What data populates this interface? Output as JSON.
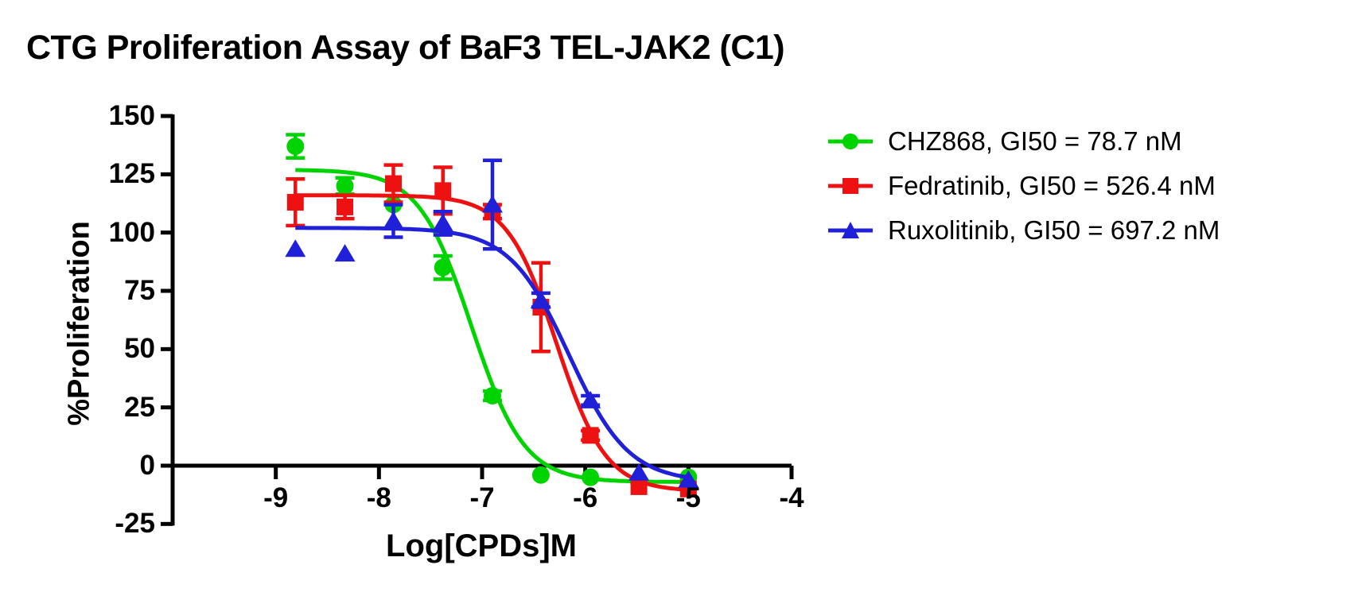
{
  "title": "CTG Proliferation Assay of BaF3 TEL-JAK2 (C1)",
  "chart_data": {
    "type": "scatter",
    "title": "CTG Proliferation Assay of BaF3 TEL-JAK2 (C1)",
    "xlabel": "Log[CPDs]M",
    "ylabel": "%Proliferation",
    "xlim": [
      -10,
      -4
    ],
    "ylim": [
      -25,
      150
    ],
    "x_ticks": [
      -9,
      -8,
      -7,
      -6,
      -5,
      -4
    ],
    "y_ticks": [
      150,
      125,
      100,
      75,
      50,
      25,
      0,
      -25
    ],
    "grid": false,
    "legend_position": "right",
    "x": [
      -8.81,
      -8.33,
      -7.86,
      -7.38,
      -6.9,
      -6.43,
      -5.95,
      -5.48,
      -5.0
    ],
    "series": [
      {
        "name": "CHZ868",
        "gi50_nM": 78.7,
        "legend_label": "CHZ868, GI50 = 78.7 nM",
        "color": "#00D400",
        "marker": "circle",
        "values": [
          137,
          120,
          112,
          85,
          30,
          -4,
          -5,
          -7,
          -5
        ],
        "errors": [
          5,
          3.5,
          0,
          5,
          2,
          0,
          0,
          0,
          0
        ],
        "fit": {
          "top": 127,
          "bottom": -7,
          "logIC50": -7.104,
          "hill": 1.7
        }
      },
      {
        "name": "Fedratinib",
        "gi50_nM": 526.4,
        "legend_label": "Fedratinib, GI50 = 526.4 nM",
        "color": "#EE1111",
        "marker": "square",
        "values": [
          113,
          111,
          121,
          118,
          109,
          68,
          13,
          -9,
          -10
        ],
        "errors": [
          10,
          5,
          8,
          10,
          3,
          19,
          2,
          0,
          0
        ],
        "fit": {
          "top": 116,
          "bottom": -11,
          "logIC50": -6.279,
          "hill": 1.8
        }
      },
      {
        "name": "Ruxolitinib",
        "gi50_nM": 697.2,
        "legend_label": "Ruxolitinib, GI50 = 697.2 nM",
        "color": "#2020D8",
        "marker": "triangle",
        "values": [
          93,
          91,
          105,
          104,
          112,
          71,
          28,
          -3,
          -6
        ],
        "errors": [
          0,
          0,
          7,
          5,
          19,
          3,
          2,
          0,
          0
        ],
        "fit": {
          "top": 102,
          "bottom": -7,
          "logIC50": -6.157,
          "hill": 1.5
        }
      }
    ]
  }
}
